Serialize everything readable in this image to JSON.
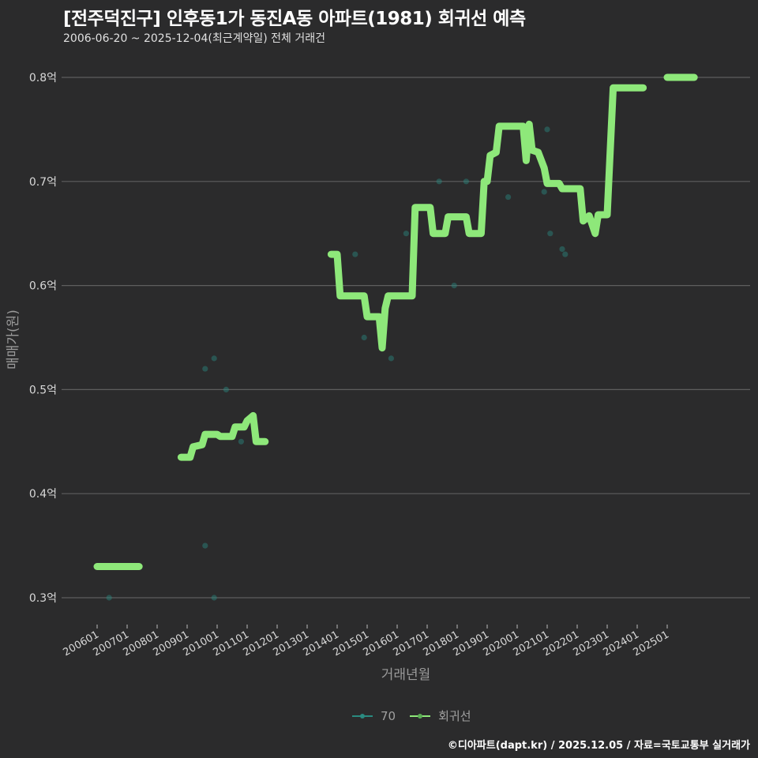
{
  "header": {
    "title": "[전주덕진구] 인후동1가 동진A동 아파트(1981) 회귀선 예측",
    "subtitle": "2006-06-20 ~ 2025-12-04(최근계약일) 전체 거래건"
  },
  "legend": {
    "items": [
      {
        "label": "70",
        "color": "#2a8a80"
      },
      {
        "label": "회귀선",
        "color": "#8ee87a"
      }
    ]
  },
  "footer": {
    "credit": "©디아파트(dapt.kr) / 2025.12.05 / 자료=국토교통부 실거래가"
  },
  "chart_data": {
    "type": "line",
    "title": "[전주덕진구] 인후동1가 동진A동 아파트(1981) 회귀선 예측",
    "subtitle": "2006-06-20 ~ 2025-12-04(최근계약일) 전체 거래건",
    "xlabel": "거래년월",
    "ylabel": "매매가(원)",
    "ylim": [
      0.28,
      0.82
    ],
    "y_ticks": [
      0.3,
      0.4,
      0.5,
      0.6,
      0.7,
      0.8
    ],
    "y_tick_labels": [
      "0.3억",
      "0.4억",
      "0.5억",
      "0.6억",
      "0.7억",
      "0.8억"
    ],
    "x_tick_labels": [
      "200601",
      "200701",
      "200801",
      "200901",
      "201001",
      "201101",
      "201201",
      "201301",
      "201401",
      "201501",
      "201601",
      "201701",
      "201801",
      "201901",
      "202001",
      "202101",
      "202201",
      "202301",
      "202401",
      "202501"
    ],
    "grid": true,
    "legend_position": "bottom",
    "series": [
      {
        "name": "70",
        "kind": "scatter",
        "color": "#2a8a80",
        "points": [
          {
            "x": 2006.4,
            "y": 0.3
          },
          {
            "x": 2009.6,
            "y": 0.52
          },
          {
            "x": 2009.6,
            "y": 0.35
          },
          {
            "x": 2009.9,
            "y": 0.53
          },
          {
            "x": 2009.9,
            "y": 0.3
          },
          {
            "x": 2010.3,
            "y": 0.5
          },
          {
            "x": 2010.8,
            "y": 0.45
          },
          {
            "x": 2014.6,
            "y": 0.63
          },
          {
            "x": 2014.9,
            "y": 0.55
          },
          {
            "x": 2015.8,
            "y": 0.53
          },
          {
            "x": 2016.3,
            "y": 0.65
          },
          {
            "x": 2017.4,
            "y": 0.7
          },
          {
            "x": 2017.9,
            "y": 0.6
          },
          {
            "x": 2018.3,
            "y": 0.7
          },
          {
            "x": 2019.7,
            "y": 0.685
          },
          {
            "x": 2020.9,
            "y": 0.69
          },
          {
            "x": 2021.0,
            "y": 0.75
          },
          {
            "x": 2021.1,
            "y": 0.65
          },
          {
            "x": 2021.5,
            "y": 0.635
          },
          {
            "x": 2021.6,
            "y": 0.63
          }
        ]
      },
      {
        "name": "회귀선",
        "kind": "line",
        "color": "#8ee87a",
        "segments": [
          [
            [
              2006.0,
              0.33
            ],
            [
              2007.4,
              0.33
            ]
          ],
          [
            [
              2008.8,
              0.435
            ],
            [
              2009.1,
              0.435
            ],
            [
              2009.2,
              0.445
            ],
            [
              2009.5,
              0.447
            ],
            [
              2009.6,
              0.457
            ],
            [
              2010.0,
              0.457
            ],
            [
              2010.1,
              0.455
            ],
            [
              2010.5,
              0.455
            ],
            [
              2010.6,
              0.464
            ],
            [
              2010.9,
              0.464
            ],
            [
              2011.0,
              0.47
            ],
            [
              2011.2,
              0.475
            ],
            [
              2011.3,
              0.45
            ],
            [
              2011.6,
              0.45
            ]
          ],
          [
            [
              2013.8,
              0.63
            ],
            [
              2014.0,
              0.63
            ],
            [
              2014.1,
              0.59
            ],
            [
              2014.9,
              0.59
            ],
            [
              2015.0,
              0.57
            ],
            [
              2015.4,
              0.57
            ],
            [
              2015.5,
              0.54
            ],
            [
              2015.6,
              0.578
            ],
            [
              2015.7,
              0.59
            ],
            [
              2016.5,
              0.59
            ],
            [
              2016.6,
              0.675
            ],
            [
              2017.1,
              0.675
            ],
            [
              2017.2,
              0.65
            ],
            [
              2017.6,
              0.65
            ],
            [
              2017.7,
              0.666
            ],
            [
              2018.3,
              0.666
            ],
            [
              2018.4,
              0.65
            ],
            [
              2018.8,
              0.65
            ],
            [
              2018.9,
              0.7
            ],
            [
              2019.0,
              0.7
            ],
            [
              2019.1,
              0.725
            ],
            [
              2019.3,
              0.728
            ],
            [
              2019.4,
              0.753
            ],
            [
              2020.2,
              0.753
            ],
            [
              2020.3,
              0.72
            ],
            [
              2020.4,
              0.755
            ],
            [
              2020.5,
              0.73
            ],
            [
              2020.7,
              0.728
            ],
            [
              2020.9,
              0.713
            ],
            [
              2021.0,
              0.698
            ],
            [
              2021.4,
              0.698
            ],
            [
              2021.5,
              0.693
            ],
            [
              2022.1,
              0.693
            ],
            [
              2022.2,
              0.662
            ],
            [
              2022.4,
              0.667
            ],
            [
              2022.6,
              0.65
            ],
            [
              2022.7,
              0.668
            ],
            [
              2023.0,
              0.668
            ],
            [
              2023.2,
              0.79
            ],
            [
              2024.2,
              0.79
            ]
          ],
          [
            [
              2025.0,
              0.8
            ],
            [
              2025.9,
              0.8
            ]
          ]
        ]
      }
    ]
  }
}
